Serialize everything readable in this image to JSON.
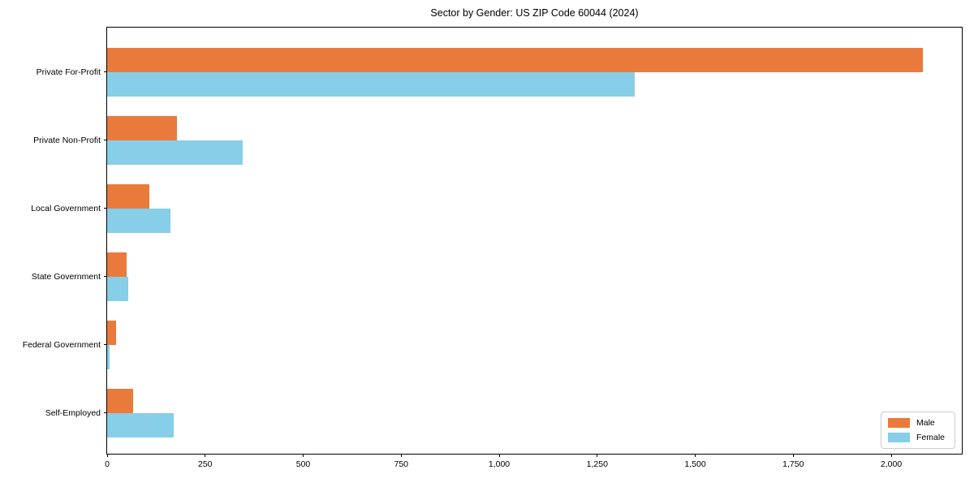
{
  "figure": {
    "background": "#ffffff",
    "text_color": "#000000"
  },
  "chart_data": {
    "type": "bar",
    "orientation": "horizontal",
    "title": "Sector by Gender: US ZIP Code 60044 (2024)",
    "xlabel": "",
    "ylabel": "",
    "grid": false,
    "categories": [
      "Private For-Profit",
      "Private Non-Profit",
      "Local Government",
      "State Government",
      "Federal Government",
      "Self-Employed"
    ],
    "series": [
      {
        "name": "Male",
        "color": "#ea7a3c",
        "values": [
          2080,
          178,
          108,
          50,
          23,
          66
        ]
      },
      {
        "name": "Female",
        "color": "#87cee9",
        "values": [
          1345,
          345,
          161,
          53,
          6,
          170
        ]
      }
    ],
    "xlim": [
      0,
      2180
    ],
    "xticks": {
      "values": [
        0,
        250,
        500,
        750,
        1000,
        1250,
        1500,
        1750,
        2000
      ],
      "labels": [
        "0",
        "250",
        "500",
        "750",
        "1,000",
        "1,250",
        "1,500",
        "1,750",
        "2,000"
      ]
    },
    "legend": {
      "position": "lower right",
      "entries": [
        "Male",
        "Female"
      ]
    }
  }
}
